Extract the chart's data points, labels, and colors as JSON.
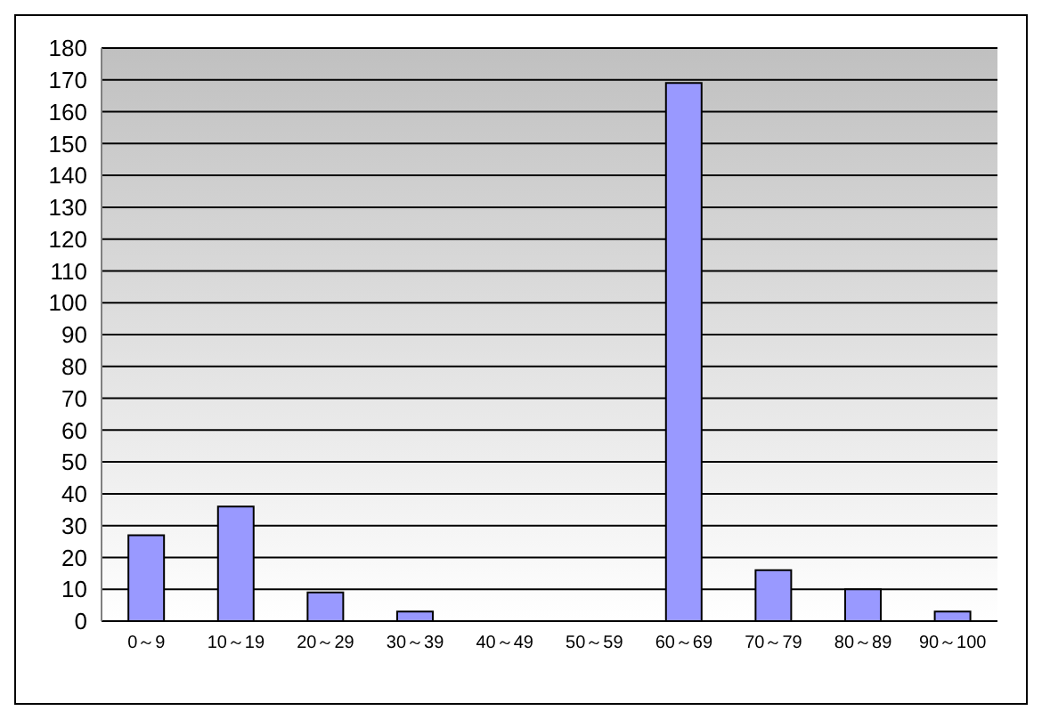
{
  "chart_data": {
    "type": "bar",
    "categories": [
      "0～9",
      "10～19",
      "20～29",
      "30～39",
      "40～49",
      "50～59",
      "60～69",
      "70～79",
      "80～89",
      "90～100"
    ],
    "values": [
      27,
      36,
      9,
      3,
      0,
      0,
      169,
      16,
      10,
      3
    ],
    "color": "#9999ff",
    "ylim": [
      0,
      180
    ],
    "yticks": [
      0,
      10,
      20,
      30,
      40,
      50,
      60,
      70,
      80,
      90,
      100,
      110,
      120,
      130,
      140,
      150,
      160,
      170,
      180
    ],
    "grid": "y"
  }
}
